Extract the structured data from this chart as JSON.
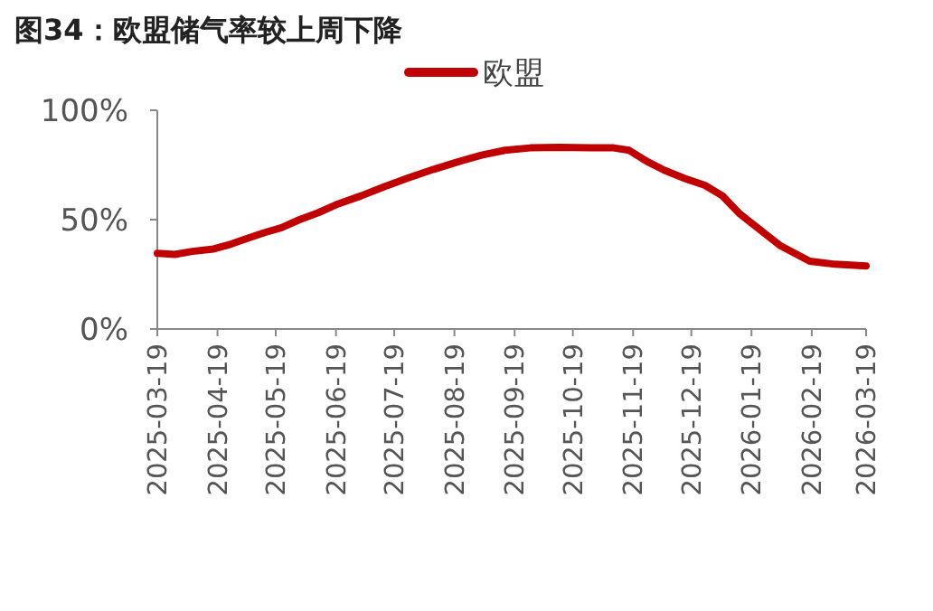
{
  "chart_data": {
    "type": "line",
    "title": "图34：欧盟储气率较上周下降",
    "x": [
      "2025-03-19",
      "2025-03-28",
      "2025-04-06",
      "2025-04-17",
      "2025-04-26",
      "2025-05-04",
      "2025-05-13",
      "2025-05-22",
      "2025-05-31",
      "2025-06-10",
      "2025-06-19",
      "2025-07-02",
      "2025-07-14",
      "2025-07-26",
      "2025-08-08",
      "2025-08-20",
      "2025-09-02",
      "2025-09-14",
      "2025-09-27",
      "2025-10-12",
      "2025-10-28",
      "2025-11-09",
      "2025-11-17",
      "2025-11-26",
      "2025-12-05",
      "2025-12-16",
      "2025-12-26",
      "2026-01-04",
      "2026-01-13",
      "2026-01-22",
      "2026-02-03",
      "2026-02-18",
      "2026-03-03",
      "2026-03-19"
    ],
    "series": [
      {
        "name": "欧盟",
        "color": "#c00000",
        "values": [
          34.6,
          34.1,
          35.5,
          36.6,
          38.8,
          41.3,
          44,
          46.3,
          49.9,
          53.2,
          56.8,
          60.9,
          65.1,
          69,
          72.9,
          76.2,
          79.5,
          81.7,
          82.8,
          83.1,
          82.8,
          82.8,
          81.7,
          76.7,
          72.6,
          68.7,
          65.7,
          60.9,
          52.6,
          46.3,
          38,
          31,
          29.6,
          28.8
        ]
      }
    ],
    "xlim": [
      "2025-03-19",
      "2026-03-19"
    ],
    "xticks": [
      "2025-03-19",
      "2025-04-19",
      "2025-05-19",
      "2025-06-19",
      "2025-07-19",
      "2025-08-19",
      "2025-09-19",
      "2025-10-19",
      "2025-11-19",
      "2025-12-19",
      "2026-01-19",
      "2026-02-19",
      "2026-03-19"
    ],
    "ylim": [
      0,
      100
    ],
    "yticks": [
      {
        "value": 0,
        "label": "0%"
      },
      {
        "value": 50,
        "label": "50%"
      },
      {
        "value": 100,
        "label": "100%"
      }
    ],
    "legend": "top",
    "grid": false,
    "marker": "none",
    "line_style": "solid"
  }
}
